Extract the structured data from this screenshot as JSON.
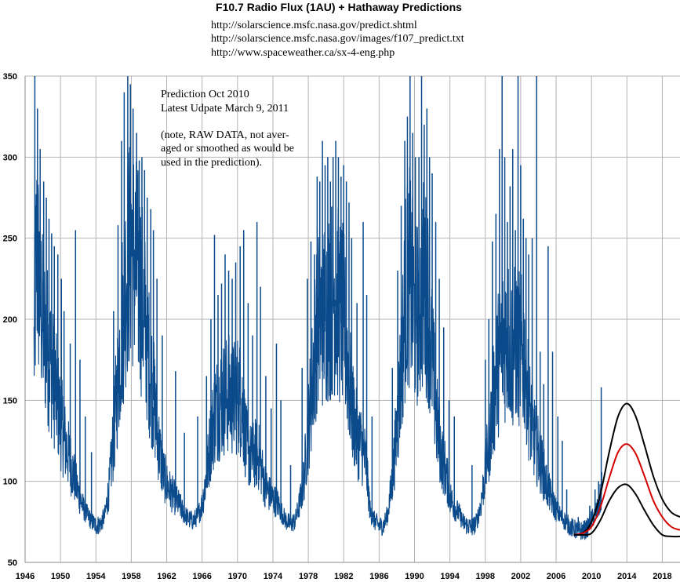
{
  "chart_data": {
    "type": "line",
    "title": "F10.7 Radio Flux (1AU) + Hathaway  Predictions",
    "links": [
      "http://solarscience.msfc.nasa.gov/predict.shtml",
      "http://solarscience.msfc.nasa.gov/images/f107_predict.txt",
      "http://www.spaceweather.ca/sx-4-eng.php"
    ],
    "annotation_lines": [
      "Prediction Oct 2010",
      "Latest Udpate March 9, 2011",
      "",
      "(note, RAW DATA, not aver-",
      "aged or smoothed as would be",
      "used in the prediction)."
    ],
    "xlabel": "",
    "ylabel": "",
    "xlim": [
      1946,
      2020
    ],
    "ylim": [
      50,
      350
    ],
    "x_ticks": [
      1946,
      1950,
      1954,
      1958,
      1962,
      1966,
      1970,
      1974,
      1978,
      1982,
      1986,
      1990,
      1994,
      1998,
      2002,
      2006,
      2010,
      2014,
      2018
    ],
    "y_ticks": [
      50,
      100,
      150,
      200,
      250,
      300,
      350
    ],
    "grid": true,
    "series": [
      {
        "color": "#0b4a8b",
        "style": "raw daily data",
        "points": [
          [
            1947.0,
            175
          ],
          [
            1947.3,
            235
          ],
          [
            1947.6,
            215
          ],
          [
            1948.0,
            190
          ],
          [
            1948.5,
            180
          ],
          [
            1949.0,
            165
          ],
          [
            1949.5,
            150
          ],
          [
            1950.0,
            135
          ],
          [
            1950.5,
            122
          ],
          [
            1951.0,
            112
          ],
          [
            1951.5,
            102
          ],
          [
            1952.0,
            92
          ],
          [
            1952.5,
            84
          ],
          [
            1953.0,
            79
          ],
          [
            1953.5,
            75
          ],
          [
            1954.0,
            72
          ],
          [
            1954.5,
            73
          ],
          [
            1955.0,
            78
          ],
          [
            1955.5,
            95
          ],
          [
            1956.0,
            125
          ],
          [
            1956.5,
            160
          ],
          [
            1957.0,
            195
          ],
          [
            1957.5,
            225
          ],
          [
            1958.0,
            240
          ],
          [
            1958.5,
            225
          ],
          [
            1959.0,
            215
          ],
          [
            1959.5,
            195
          ],
          [
            1960.0,
            170
          ],
          [
            1960.5,
            150
          ],
          [
            1961.0,
            125
          ],
          [
            1961.5,
            105
          ],
          [
            1962.0,
            97
          ],
          [
            1962.5,
            92
          ],
          [
            1963.0,
            88
          ],
          [
            1963.5,
            84
          ],
          [
            1964.0,
            79
          ],
          [
            1964.5,
            76
          ],
          [
            1965.0,
            75
          ],
          [
            1965.5,
            78
          ],
          [
            1966.0,
            85
          ],
          [
            1966.5,
            102
          ],
          [
            1967.0,
            125
          ],
          [
            1967.5,
            140
          ],
          [
            1968.0,
            145
          ],
          [
            1968.5,
            148
          ],
          [
            1969.0,
            150
          ],
          [
            1969.5,
            147
          ],
          [
            1970.0,
            150
          ],
          [
            1970.5,
            145
          ],
          [
            1971.0,
            120
          ],
          [
            1971.5,
            112
          ],
          [
            1972.0,
            115
          ],
          [
            1972.5,
            112
          ],
          [
            1973.0,
            98
          ],
          [
            1973.5,
            92
          ],
          [
            1974.0,
            88
          ],
          [
            1974.5,
            86
          ],
          [
            1975.0,
            80
          ],
          [
            1975.5,
            75
          ],
          [
            1976.0,
            73
          ],
          [
            1976.5,
            75
          ],
          [
            1977.0,
            85
          ],
          [
            1977.5,
            100
          ],
          [
            1978.0,
            130
          ],
          [
            1978.5,
            160
          ],
          [
            1979.0,
            195
          ],
          [
            1979.5,
            195
          ],
          [
            1980.0,
            200
          ],
          [
            1980.5,
            205
          ],
          [
            1981.0,
            210
          ],
          [
            1981.5,
            200
          ],
          [
            1982.0,
            195
          ],
          [
            1982.5,
            165
          ],
          [
            1983.0,
            140
          ],
          [
            1983.5,
            125
          ],
          [
            1984.0,
            120
          ],
          [
            1984.5,
            110
          ],
          [
            1985.0,
            80
          ],
          [
            1985.5,
            75
          ],
          [
            1986.0,
            72
          ],
          [
            1986.5,
            72
          ],
          [
            1987.0,
            80
          ],
          [
            1987.5,
            100
          ],
          [
            1988.0,
            130
          ],
          [
            1988.5,
            165
          ],
          [
            1989.0,
            210
          ],
          [
            1989.5,
            220
          ],
          [
            1990.0,
            195
          ],
          [
            1990.5,
            200
          ],
          [
            1991.0,
            215
          ],
          [
            1991.5,
            205
          ],
          [
            1992.0,
            170
          ],
          [
            1992.5,
            135
          ],
          [
            1993.0,
            115
          ],
          [
            1993.5,
            105
          ],
          [
            1994.0,
            90
          ],
          [
            1994.5,
            83
          ],
          [
            1995.0,
            80
          ],
          [
            1995.5,
            74
          ],
          [
            1996.0,
            72
          ],
          [
            1996.5,
            71
          ],
          [
            1997.0,
            74
          ],
          [
            1997.5,
            85
          ],
          [
            1998.0,
            105
          ],
          [
            1998.5,
            125
          ],
          [
            1999.0,
            150
          ],
          [
            1999.5,
            170
          ],
          [
            2000.0,
            180
          ],
          [
            2000.5,
            185
          ],
          [
            2001.0,
            175
          ],
          [
            2001.5,
            180
          ],
          [
            2002.0,
            175
          ],
          [
            2002.5,
            170
          ],
          [
            2003.0,
            140
          ],
          [
            2003.5,
            125
          ],
          [
            2004.0,
            115
          ],
          [
            2004.5,
            105
          ],
          [
            2005.0,
            95
          ],
          [
            2005.5,
            88
          ],
          [
            2006.0,
            82
          ],
          [
            2006.5,
            78
          ],
          [
            2007.0,
            75
          ],
          [
            2007.5,
            72
          ],
          [
            2008.0,
            70
          ],
          [
            2008.5,
            69
          ],
          [
            2009.0,
            69
          ],
          [
            2009.5,
            70
          ],
          [
            2009.9,
            75
          ],
          [
            2010.3,
            78
          ],
          [
            2010.7,
            82
          ],
          [
            2011.0,
            88
          ],
          [
            2011.2,
            95
          ]
        ]
      },
      {
        "color": "#000000",
        "style": "upper bound",
        "points": [
          [
            2008.0,
            67
          ],
          [
            2009.0,
            68
          ],
          [
            2010.0,
            75
          ],
          [
            2011.0,
            92
          ],
          [
            2012.0,
            118
          ],
          [
            2013.0,
            140
          ],
          [
            2014.0,
            148
          ],
          [
            2015.0,
            140
          ],
          [
            2016.0,
            122
          ],
          [
            2017.0,
            103
          ],
          [
            2018.0,
            89
          ],
          [
            2019.0,
            81
          ],
          [
            2020.0,
            78
          ]
        ]
      },
      {
        "color": "#d40000",
        "style": "prediction",
        "points": [
          [
            2008.0,
            67
          ],
          [
            2009.0,
            68
          ],
          [
            2010.0,
            72
          ],
          [
            2011.0,
            84
          ],
          [
            2012.0,
            102
          ],
          [
            2013.0,
            118
          ],
          [
            2014.0,
            123
          ],
          [
            2015.0,
            117
          ],
          [
            2016.0,
            103
          ],
          [
            2017.0,
            88
          ],
          [
            2018.0,
            78
          ],
          [
            2019.0,
            72
          ],
          [
            2020.0,
            70
          ]
        ]
      },
      {
        "color": "#000000",
        "style": "lower bound",
        "points": [
          [
            2008.0,
            67
          ],
          [
            2009.0,
            67
          ],
          [
            2010.0,
            68
          ],
          [
            2011.0,
            76
          ],
          [
            2012.0,
            88
          ],
          [
            2013.0,
            96
          ],
          [
            2014.0,
            98
          ],
          [
            2015.0,
            92
          ],
          [
            2016.0,
            82
          ],
          [
            2017.0,
            73
          ],
          [
            2018.0,
            67
          ],
          [
            2019.0,
            66
          ],
          [
            2020.0,
            66
          ]
        ]
      }
    ],
    "spikes": [
      [
        1947.1,
        350
      ],
      [
        1947.4,
        330
      ],
      [
        1947.7,
        305
      ],
      [
        1948.1,
        285
      ],
      [
        1948.4,
        275
      ],
      [
        1948.7,
        262
      ],
      [
        1949.0,
        253
      ],
      [
        1949.3,
        245
      ],
      [
        1949.7,
        240
      ],
      [
        1950.1,
        225
      ],
      [
        1950.4,
        205
      ],
      [
        1951.1,
        185
      ],
      [
        1951.7,
        255
      ],
      [
        1952.2,
        175
      ],
      [
        1952.8,
        140
      ],
      [
        1953.5,
        118
      ],
      [
        1956.0,
        205
      ],
      [
        1956.5,
        258
      ],
      [
        1956.9,
        310
      ],
      [
        1957.2,
        340
      ],
      [
        1957.6,
        350
      ],
      [
        1957.9,
        345
      ],
      [
        1958.2,
        330
      ],
      [
        1958.6,
        315
      ],
      [
        1958.9,
        298
      ],
      [
        1959.2,
        300
      ],
      [
        1959.5,
        292
      ],
      [
        1959.8,
        275
      ],
      [
        1960.2,
        268
      ],
      [
        1960.5,
        255
      ],
      [
        1960.9,
        225
      ],
      [
        1961.5,
        190
      ],
      [
        1963.0,
        168
      ],
      [
        1964.0,
        130
      ],
      [
        1965.5,
        140
      ],
      [
        1966.5,
        165
      ],
      [
        1967.0,
        200
      ],
      [
        1967.4,
        252
      ],
      [
        1967.8,
        215
      ],
      [
        1968.2,
        222
      ],
      [
        1968.6,
        240
      ],
      [
        1969.0,
        230
      ],
      [
        1969.4,
        225
      ],
      [
        1969.8,
        235
      ],
      [
        1970.3,
        245
      ],
      [
        1970.7,
        255
      ],
      [
        1971.2,
        210
      ],
      [
        1971.7,
        190
      ],
      [
        1972.2,
        260
      ],
      [
        1972.6,
        220
      ],
      [
        1973.2,
        165
      ],
      [
        1973.8,
        145
      ],
      [
        1974.4,
        185
      ],
      [
        1974.9,
        150
      ],
      [
        1976.0,
        110
      ],
      [
        1977.3,
        170
      ],
      [
        1977.9,
        225
      ],
      [
        1978.3,
        248
      ],
      [
        1978.7,
        240
      ],
      [
        1979.0,
        288
      ],
      [
        1979.3,
        285
      ],
      [
        1979.6,
        310
      ],
      [
        1979.9,
        295
      ],
      [
        1980.2,
        300
      ],
      [
        1980.5,
        285
      ],
      [
        1980.8,
        300
      ],
      [
        1981.1,
        310
      ],
      [
        1981.4,
        300
      ],
      [
        1981.7,
        288
      ],
      [
        1982.0,
        295
      ],
      [
        1982.3,
        285
      ],
      [
        1982.6,
        272
      ],
      [
        1982.9,
        250
      ],
      [
        1983.5,
        210
      ],
      [
        1984.2,
        260
      ],
      [
        1984.6,
        215
      ],
      [
        1985.2,
        140
      ],
      [
        1987.5,
        170
      ],
      [
        1988.1,
        230
      ],
      [
        1988.5,
        270
      ],
      [
        1988.9,
        310
      ],
      [
        1989.2,
        325
      ],
      [
        1989.5,
        350
      ],
      [
        1989.8,
        315
      ],
      [
        1990.1,
        300
      ],
      [
        1990.5,
        300
      ],
      [
        1990.8,
        350
      ],
      [
        1991.1,
        320
      ],
      [
        1991.4,
        330
      ],
      [
        1991.7,
        300
      ],
      [
        1992.0,
        290
      ],
      [
        1992.4,
        260
      ],
      [
        1992.8,
        225
      ],
      [
        1993.3,
        195
      ],
      [
        1993.9,
        150
      ],
      [
        1994.5,
        140
      ],
      [
        1996.5,
        110
      ],
      [
        1998.0,
        175
      ],
      [
        1998.4,
        200
      ],
      [
        1998.8,
        248
      ],
      [
        1999.2,
        265
      ],
      [
        1999.6,
        305
      ],
      [
        1999.9,
        350
      ],
      [
        2000.2,
        300
      ],
      [
        2000.5,
        260
      ],
      [
        2000.8,
        282
      ],
      [
        2001.1,
        305
      ],
      [
        2001.4,
        255
      ],
      [
        2001.7,
        350
      ],
      [
        2002.0,
        295
      ],
      [
        2002.3,
        262
      ],
      [
        2002.6,
        250
      ],
      [
        2002.9,
        240
      ],
      [
        2003.3,
        250
      ],
      [
        2003.8,
        350
      ],
      [
        2004.2,
        180
      ],
      [
        2004.6,
        160
      ],
      [
        2005.1,
        245
      ],
      [
        2005.6,
        180
      ],
      [
        2006.2,
        140
      ],
      [
        2006.7,
        125
      ],
      [
        2007.2,
        95
      ],
      [
        2008.5,
        78
      ],
      [
        2009.8,
        85
      ],
      [
        2010.4,
        95
      ],
      [
        2010.8,
        100
      ],
      [
        2011.1,
        158
      ]
    ]
  }
}
